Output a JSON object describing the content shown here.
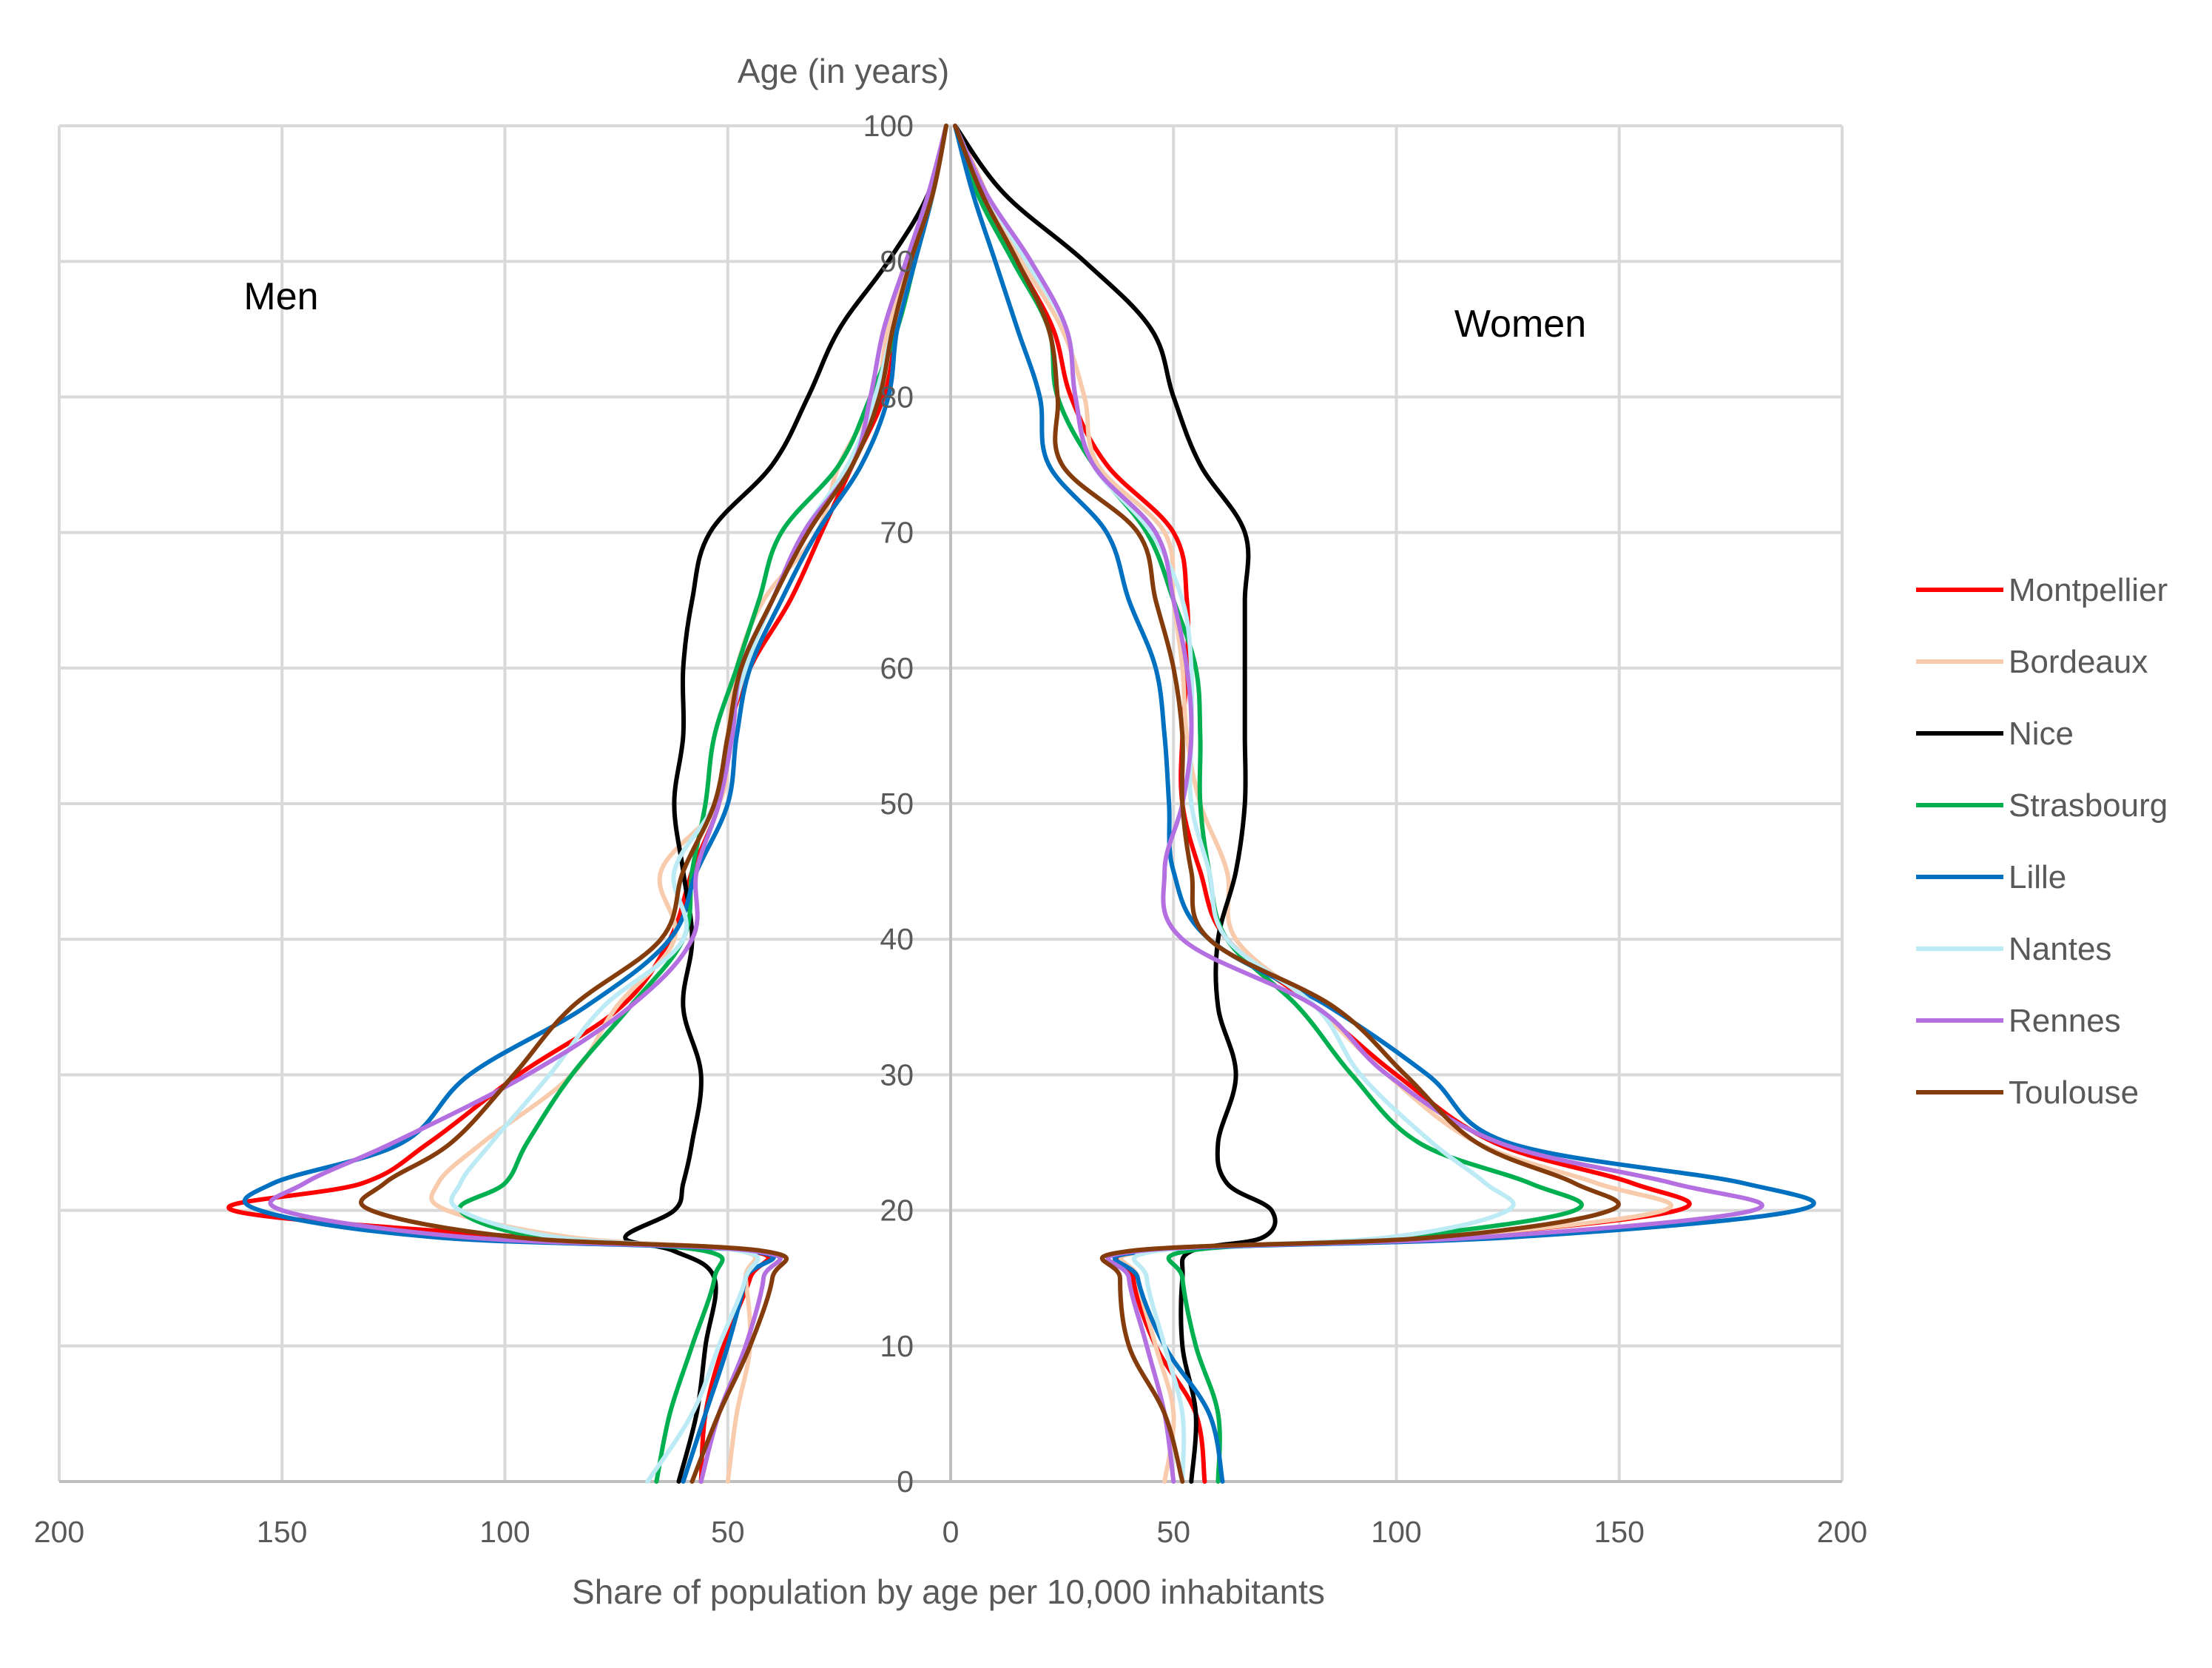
{
  "chart_data": {
    "type": "line",
    "title": "",
    "ylabel": "Age (in years)",
    "xlabel": "Share of population by age per 10,000 inhabitants",
    "side_labels": {
      "left": "Men",
      "right": "Women"
    },
    "xlim": [
      -200,
      200
    ],
    "ylim": [
      0,
      100
    ],
    "x_ticks": [
      -200,
      -150,
      -100,
      -50,
      0,
      50,
      100,
      150,
      200
    ],
    "x_tick_labels": [
      "200",
      "150",
      "100",
      "50",
      "0",
      "50",
      "100",
      "150",
      "200"
    ],
    "y_ticks": [
      0,
      10,
      20,
      30,
      40,
      50,
      60,
      70,
      80,
      90,
      100
    ],
    "y_tick_labels": [
      "0",
      "10",
      "20",
      "30",
      "40",
      "50",
      "60",
      "70",
      "80",
      "90",
      "100"
    ],
    "grid": true,
    "legend_position": "right",
    "age_points": [
      0,
      5,
      10,
      15,
      17,
      18,
      20,
      22,
      25,
      30,
      35,
      40,
      45,
      50,
      55,
      60,
      65,
      70,
      75,
      80,
      85,
      90,
      95,
      100
    ],
    "series": [
      {
        "name": "Montpellier",
        "color": "#ff0000",
        "men": [
          56,
          55,
          51,
          45,
          45,
          95,
          161,
          132,
          117,
          97,
          74,
          63,
          58,
          52,
          50,
          45,
          36,
          29,
          22,
          15,
          12,
          8,
          4,
          1
        ],
        "women": [
          57,
          55,
          46,
          41,
          44,
          108,
          163,
          153,
          122,
          100,
          82,
          62,
          56,
          52,
          52,
          53,
          53,
          50,
          35,
          27,
          23,
          15,
          8,
          1
        ]
      },
      {
        "name": "Bordeaux",
        "color": "#f8cbad",
        "men": [
          50,
          48,
          45,
          46,
          47,
          85,
          113,
          115,
          105,
          85,
          75,
          62,
          65,
          52,
          50,
          48,
          42,
          30,
          25,
          17,
          14,
          9,
          4,
          1
        ],
        "women": [
          48,
          50,
          46,
          42,
          44,
          108,
          160,
          145,
          118,
          98,
          82,
          64,
          62,
          56,
          53,
          52,
          50,
          48,
          33,
          30,
          25,
          16,
          8,
          1
        ]
      },
      {
        "name": "Nice",
        "color": "#000000",
        "men": [
          61,
          57,
          55,
          53,
          62,
          73,
          62,
          60,
          58,
          56,
          60,
          58,
          60,
          62,
          60,
          60,
          58,
          54,
          40,
          32,
          25,
          14,
          5,
          1
        ],
        "women": [
          54,
          55,
          52,
          52,
          54,
          70,
          72,
          62,
          60,
          64,
          60,
          60,
          64,
          66,
          66,
          66,
          66,
          66,
          56,
          50,
          45,
          30,
          12,
          1
        ]
      },
      {
        "name": "Strasbourg",
        "color": "#00b050",
        "men": [
          66,
          63,
          58,
          53,
          55,
          92,
          110,
          100,
          95,
          85,
          72,
          60,
          58,
          55,
          53,
          48,
          43,
          38,
          25,
          18,
          12,
          8,
          4,
          1
        ],
        "women": [
          60,
          60,
          55,
          52,
          53,
          100,
          140,
          130,
          105,
          90,
          78,
          62,
          58,
          56,
          56,
          55,
          50,
          44,
          32,
          24,
          22,
          14,
          6,
          1
        ]
      },
      {
        "name": "Lille",
        "color": "#0070c0",
        "men": [
          60,
          55,
          50,
          46,
          45,
          115,
          155,
          152,
          123,
          108,
          82,
          63,
          57,
          50,
          48,
          45,
          38,
          30,
          20,
          14,
          12,
          8,
          4,
          1
        ],
        "women": [
          61,
          58,
          48,
          42,
          44,
          125,
          190,
          178,
          125,
          107,
          85,
          58,
          50,
          49,
          48,
          46,
          40,
          35,
          22,
          20,
          15,
          10,
          5,
          1
        ]
      },
      {
        "name": "Nantes",
        "color": "#bdebf5",
        "men": [
          68,
          58,
          52,
          46,
          47,
          88,
          110,
          110,
          103,
          90,
          78,
          60,
          62,
          53,
          50,
          46,
          40,
          33,
          23,
          17,
          13,
          9,
          4,
          1
        ],
        "women": [
          52,
          52,
          48,
          44,
          46,
          98,
          125,
          120,
          108,
          92,
          82,
          62,
          58,
          54,
          54,
          54,
          52,
          45,
          32,
          28,
          26,
          17,
          8,
          1
        ]
      },
      {
        "name": "Rennes",
        "color": "#b46fe0",
        "men": [
          56,
          52,
          46,
          42,
          44,
          108,
          150,
          145,
          125,
          95,
          72,
          58,
          57,
          52,
          49,
          47,
          40,
          33,
          22,
          18,
          15,
          10,
          5,
          1
        ],
        "women": [
          50,
          48,
          44,
          40,
          42,
          118,
          180,
          162,
          123,
          98,
          82,
          52,
          48,
          52,
          54,
          53,
          50,
          46,
          32,
          28,
          26,
          18,
          8,
          1
        ]
      },
      {
        "name": "Toulouse",
        "color": "#843c0c",
        "men": [
          58,
          52,
          45,
          40,
          42,
          97,
          130,
          127,
          112,
          98,
          85,
          65,
          60,
          53,
          50,
          47,
          40,
          32,
          22,
          16,
          13,
          9,
          4,
          1
        ],
        "women": [
          52,
          48,
          40,
          38,
          40,
          108,
          148,
          140,
          118,
          102,
          86,
          58,
          54,
          52,
          52,
          50,
          46,
          42,
          25,
          24,
          22,
          15,
          7,
          1
        ]
      }
    ]
  }
}
